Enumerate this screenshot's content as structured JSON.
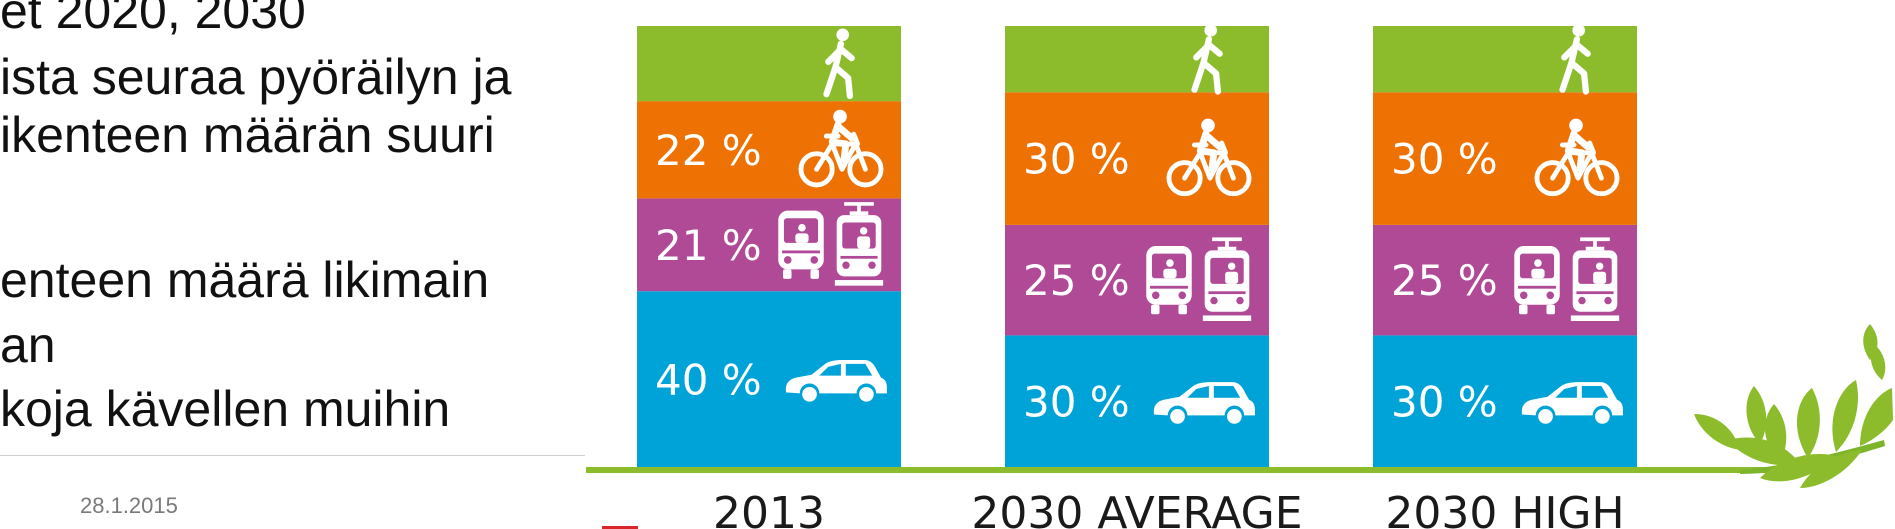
{
  "slide": {
    "lines": [
      "et 2020, 2030",
      "ista seuraa pyöräilyn ja",
      "ikenteen määrän suuri",
      "enteen määrä likimain",
      "an",
      "koja kävellen muihin"
    ],
    "footer_date": "28.1.2015"
  },
  "colors": {
    "walk": "#8cbc2c",
    "bike": "#ee7203",
    "transit": "#b04a97",
    "car": "#00a3d8",
    "ground": "#8cbc2c",
    "leaf": "#7db52a",
    "icon": "#ffffff"
  },
  "chart_data": {
    "type": "bar",
    "stacked": true,
    "categories": [
      "2013",
      "2030 AVERAGE",
      "2030 HIGH"
    ],
    "series": [
      {
        "key": "car",
        "icon": "car-icon",
        "values": [
          40,
          30,
          30
        ],
        "labels": [
          "40 %",
          "30 %",
          "30 %"
        ]
      },
      {
        "key": "transit",
        "icon": "bus-and-tram-icon",
        "values": [
          21,
          25,
          25
        ],
        "labels": [
          "21 %",
          "25 %",
          "25 %"
        ]
      },
      {
        "key": "bike",
        "icon": "bicycle-icon",
        "values": [
          22,
          30,
          30
        ],
        "labels": [
          "22 %",
          "30 %",
          "30 %"
        ]
      },
      {
        "key": "walk",
        "icon": "pedestrian-icon",
        "values": [
          17,
          15,
          15
        ]
      }
    ],
    "ylim": [
      0,
      100
    ]
  }
}
